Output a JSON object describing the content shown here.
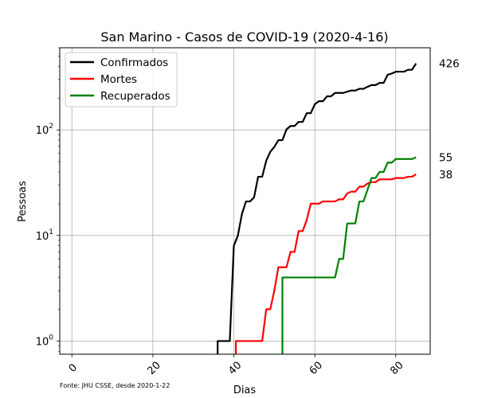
{
  "chart_data": {
    "type": "line",
    "title": "San Marino - Casos de COVID-19 (2020-4-16)",
    "xlabel": "Dias",
    "ylabel": "Pessoas",
    "yscale": "log",
    "xlim": [
      -3,
      88.5
    ],
    "ylim": [
      0.75,
      600
    ],
    "grid": true,
    "legend_position": "top-left",
    "xticks": [
      {
        "value": 0,
        "label": "0"
      },
      {
        "value": 20,
        "label": "20"
      },
      {
        "value": 40,
        "label": "40"
      },
      {
        "value": 60,
        "label": "60"
      },
      {
        "value": 80,
        "label": "80"
      }
    ],
    "yticks": [
      {
        "value": 1,
        "base": "10",
        "exp": "0"
      },
      {
        "value": 10,
        "base": "10",
        "exp": "1"
      },
      {
        "value": 100,
        "base": "10",
        "exp": "2"
      }
    ],
    "footnote": "Fonte: JHU CSSE, desde 2020-1-22",
    "series": [
      {
        "name": "Confirmados",
        "color": "#000000",
        "end_label": "426",
        "x": [
          36,
          39,
          40,
          41,
          42,
          43,
          44,
          45,
          46,
          47,
          48,
          49,
          50,
          51,
          52,
          53,
          54,
          55,
          56,
          57,
          58,
          59,
          60,
          61,
          62,
          63,
          64,
          65,
          66,
          67,
          68,
          69,
          70,
          71,
          72,
          73,
          74,
          75,
          76,
          77,
          78,
          79,
          80,
          81,
          82,
          83,
          84,
          85
        ],
        "y": [
          1,
          1,
          8,
          10,
          16,
          21,
          21,
          23,
          36,
          36,
          51,
          62,
          69,
          80,
          80,
          101,
          109,
          109,
          119,
          119,
          144,
          144,
          175,
          187,
          187,
          208,
          208,
          224,
          224,
          224,
          230,
          236,
          236,
          245,
          245,
          256,
          266,
          266,
          279,
          279,
          333,
          342,
          356,
          356,
          356,
          371,
          371,
          426
        ]
      },
      {
        "name": "Mortes",
        "color": "#ff0000",
        "end_label": "38",
        "x": [
          40.5,
          47,
          48,
          49,
          50,
          51,
          52,
          53,
          54,
          55,
          56,
          57,
          58,
          59,
          60,
          61,
          62,
          63,
          64,
          65,
          66,
          67,
          68,
          69,
          70,
          71,
          72,
          73,
          74,
          75,
          76,
          77,
          78,
          79,
          80,
          81,
          82,
          83,
          84,
          85
        ],
        "y": [
          1,
          1,
          2,
          2,
          3,
          5,
          5,
          5,
          7,
          7,
          11,
          11,
          14,
          20,
          20,
          20,
          21,
          21,
          21,
          21,
          22,
          22,
          25,
          26,
          26,
          29,
          29,
          31,
          32,
          32,
          34,
          34,
          34,
          34,
          35,
          35,
          35,
          36,
          36,
          38
        ]
      },
      {
        "name": "Recuperados",
        "color": "#008000",
        "end_label": "55",
        "x": [
          52,
          65,
          66,
          67,
          68,
          69,
          70,
          71,
          72,
          73,
          74,
          75,
          76,
          77,
          78,
          79,
          80,
          81,
          82,
          83,
          84,
          85
        ],
        "y": [
          4,
          4,
          6,
          6,
          13,
          13,
          13,
          21,
          21,
          27,
          35,
          35,
          40,
          40,
          49,
          49,
          53,
          53,
          53,
          53,
          53,
          55
        ]
      }
    ]
  }
}
